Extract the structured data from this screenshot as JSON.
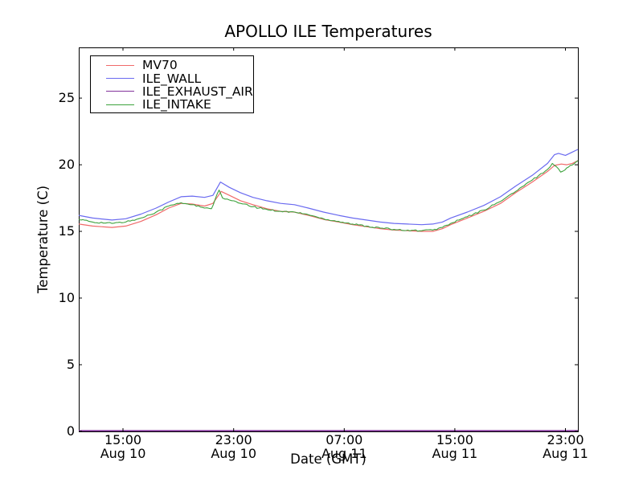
{
  "figure": {
    "background": "#ffffff",
    "axis_color": "#000000"
  },
  "chart_data": {
    "type": "line",
    "title": "APOLLO ILE Temperatures",
    "xlabel": "Date (GMT)",
    "ylabel": "Temperature (C)",
    "x_unit": "hours since Aug 10 00:00 GMT",
    "xlim": [
      11.8,
      47.9
    ],
    "ylim": [
      0,
      28.8
    ],
    "grid": false,
    "legend_position": "upper left",
    "yticks": [
      0,
      5,
      10,
      15,
      20,
      25
    ],
    "xticks": [
      {
        "t": 15,
        "time": "15:00",
        "date": "Aug 10"
      },
      {
        "t": 23,
        "time": "23:00",
        "date": "Aug 10"
      },
      {
        "t": 31,
        "time": "07:00",
        "date": "Aug 11"
      },
      {
        "t": 39,
        "time": "15:00",
        "date": "Aug 11"
      },
      {
        "t": 47,
        "time": "23:00",
        "date": "Aug 11"
      }
    ],
    "series": [
      {
        "name": "MV70",
        "color": "#f06a6a",
        "line_width": 1.2,
        "noisy": false,
        "points": [
          [
            11.8,
            15.55
          ],
          [
            12.8,
            15.4
          ],
          [
            14.2,
            15.3
          ],
          [
            15.2,
            15.4
          ],
          [
            16.3,
            15.75
          ],
          [
            17.4,
            16.25
          ],
          [
            18.3,
            16.75
          ],
          [
            19.2,
            17.1
          ],
          [
            20.0,
            17.05
          ],
          [
            20.9,
            16.9
          ],
          [
            21.5,
            17.1
          ],
          [
            22.1,
            18.0
          ],
          [
            22.7,
            17.7
          ],
          [
            23.5,
            17.3
          ],
          [
            24.4,
            17.0
          ],
          [
            25.4,
            16.7
          ],
          [
            26.4,
            16.5
          ],
          [
            27.4,
            16.45
          ],
          [
            28.4,
            16.2
          ],
          [
            29.5,
            15.9
          ],
          [
            30.6,
            15.7
          ],
          [
            31.6,
            15.5
          ],
          [
            32.6,
            15.35
          ],
          [
            33.6,
            15.2
          ],
          [
            34.6,
            15.1
          ],
          [
            35.6,
            15.05
          ],
          [
            36.6,
            15.0
          ],
          [
            37.4,
            15.0
          ],
          [
            38.1,
            15.2
          ],
          [
            38.7,
            15.5
          ],
          [
            39.9,
            16.0
          ],
          [
            41.1,
            16.5
          ],
          [
            42.3,
            17.1
          ],
          [
            43.4,
            17.9
          ],
          [
            44.6,
            18.7
          ],
          [
            45.7,
            19.5
          ],
          [
            46.2,
            19.95
          ],
          [
            46.7,
            20.05
          ],
          [
            47.1,
            20.0
          ],
          [
            47.5,
            20.1
          ],
          [
            47.9,
            20.3
          ]
        ]
      },
      {
        "name": "ILE_WALL",
        "color": "#6a6af0",
        "line_width": 1.2,
        "noisy": false,
        "points": [
          [
            11.8,
            16.2
          ],
          [
            12.8,
            16.0
          ],
          [
            14.2,
            15.85
          ],
          [
            15.2,
            15.95
          ],
          [
            16.3,
            16.3
          ],
          [
            17.4,
            16.75
          ],
          [
            18.3,
            17.2
          ],
          [
            19.2,
            17.6
          ],
          [
            20.0,
            17.65
          ],
          [
            20.9,
            17.55
          ],
          [
            21.5,
            17.7
          ],
          [
            22.05,
            18.7
          ],
          [
            22.7,
            18.3
          ],
          [
            23.5,
            17.9
          ],
          [
            24.4,
            17.55
          ],
          [
            25.4,
            17.3
          ],
          [
            26.4,
            17.1
          ],
          [
            27.4,
            17.0
          ],
          [
            28.4,
            16.75
          ],
          [
            29.5,
            16.45
          ],
          [
            30.6,
            16.2
          ],
          [
            31.6,
            16.0
          ],
          [
            32.6,
            15.85
          ],
          [
            33.6,
            15.7
          ],
          [
            34.6,
            15.6
          ],
          [
            35.6,
            15.55
          ],
          [
            36.6,
            15.5
          ],
          [
            37.4,
            15.55
          ],
          [
            38.1,
            15.7
          ],
          [
            38.7,
            16.0
          ],
          [
            39.9,
            16.45
          ],
          [
            41.1,
            16.95
          ],
          [
            42.3,
            17.6
          ],
          [
            43.4,
            18.4
          ],
          [
            44.6,
            19.2
          ],
          [
            45.7,
            20.1
          ],
          [
            46.2,
            20.75
          ],
          [
            46.5,
            20.85
          ],
          [
            47.0,
            20.7
          ],
          [
            47.5,
            20.95
          ],
          [
            47.9,
            21.15
          ]
        ]
      },
      {
        "name": "ILE_EXHAUST_AIR",
        "color": "#82329b",
        "line_width": 1.6,
        "noisy": false,
        "points": [
          [
            11.8,
            0
          ],
          [
            47.9,
            0
          ]
        ]
      },
      {
        "name": "ILE_INTAKE",
        "color": "#3da23d",
        "line_width": 1.1,
        "noisy": true,
        "noise_amplitude": 0.06,
        "points": [
          [
            11.8,
            15.9
          ],
          [
            12.8,
            15.7
          ],
          [
            14.2,
            15.6
          ],
          [
            15.2,
            15.7
          ],
          [
            16.3,
            16.0
          ],
          [
            17.4,
            16.45
          ],
          [
            18.3,
            16.9
          ],
          [
            19.2,
            17.15
          ],
          [
            20.0,
            17.0
          ],
          [
            20.9,
            16.75
          ],
          [
            21.4,
            16.7
          ],
          [
            21.95,
            18.1
          ],
          [
            22.2,
            17.5
          ],
          [
            22.7,
            17.35
          ],
          [
            23.5,
            17.1
          ],
          [
            24.4,
            16.85
          ],
          [
            25.4,
            16.65
          ],
          [
            26.4,
            16.5
          ],
          [
            27.4,
            16.45
          ],
          [
            28.4,
            16.25
          ],
          [
            29.5,
            15.95
          ],
          [
            30.6,
            15.75
          ],
          [
            31.6,
            15.55
          ],
          [
            32.6,
            15.4
          ],
          [
            33.6,
            15.25
          ],
          [
            34.6,
            15.15
          ],
          [
            35.6,
            15.1
          ],
          [
            36.6,
            15.05
          ],
          [
            37.4,
            15.1
          ],
          [
            38.1,
            15.3
          ],
          [
            38.7,
            15.6
          ],
          [
            39.9,
            16.1
          ],
          [
            41.1,
            16.6
          ],
          [
            42.3,
            17.25
          ],
          [
            43.4,
            18.0
          ],
          [
            44.6,
            18.85
          ],
          [
            45.7,
            19.65
          ],
          [
            46.05,
            20.1
          ],
          [
            46.35,
            19.85
          ],
          [
            46.65,
            19.45
          ],
          [
            46.95,
            19.6
          ],
          [
            47.35,
            19.95
          ],
          [
            47.9,
            20.3
          ]
        ]
      }
    ]
  }
}
